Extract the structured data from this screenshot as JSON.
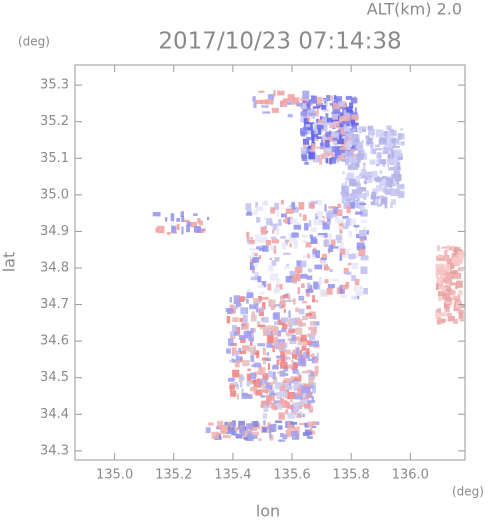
{
  "chart_data": {
    "type": "map",
    "title": "2017/10/23 07:14:38",
    "subtitle": "ALT(km) 2.0",
    "y_unit": "(deg)",
    "x_unit": "(deg)",
    "x_label": "lon",
    "y_label": "lat",
    "xlim": [
      134.866,
      136.185
    ],
    "ylim": [
      34.275,
      35.355
    ],
    "xticks": [
      {
        "value": 135,
        "label": "135.0"
      },
      135.2,
      135.4,
      135.6,
      135.8,
      {
        "value": 136,
        "label": "136.0"
      }
    ],
    "yticks": [
      34.3,
      34.4,
      34.5,
      34.6,
      34.7,
      34.8,
      34.9,
      {
        "value": 35,
        "label": "35.0"
      },
      35.1,
      35.2,
      35.3
    ]
  }
}
